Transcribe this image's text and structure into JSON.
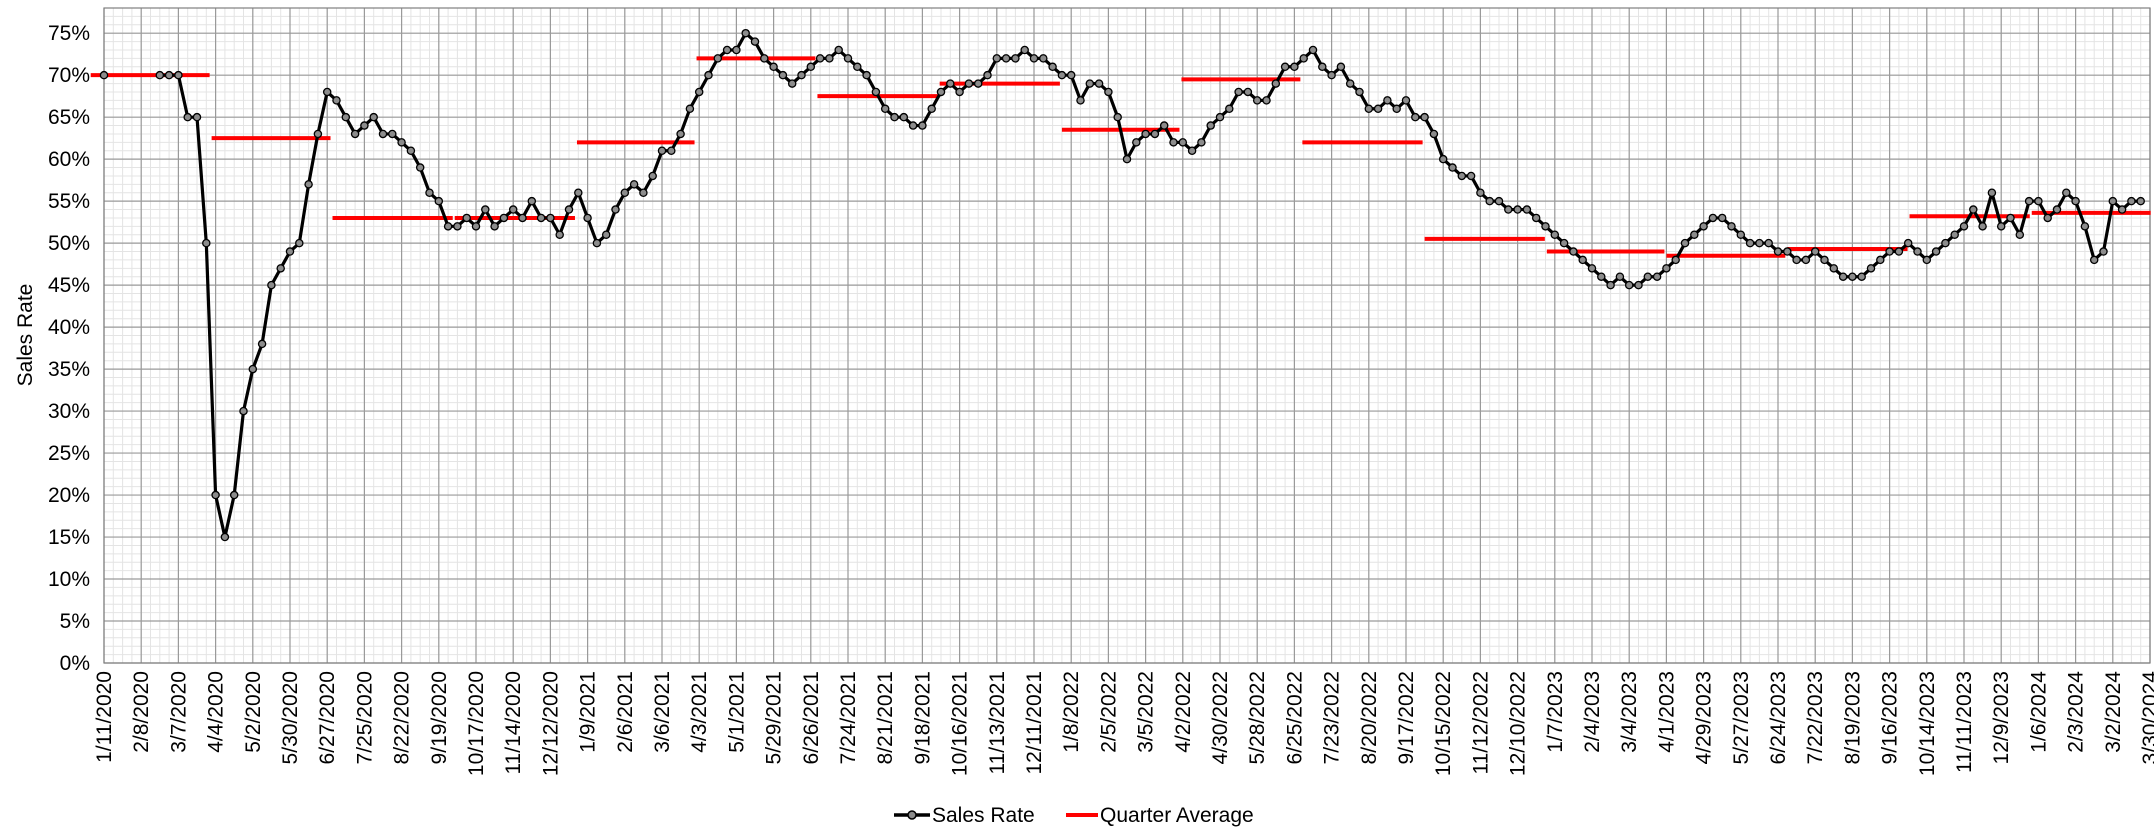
{
  "chart_data": {
    "type": "line",
    "ylabel": "Sales Rate",
    "y_unit": "%",
    "ylim": [
      0,
      78
    ],
    "y_ticks": [
      0,
      5,
      10,
      15,
      20,
      25,
      30,
      35,
      40,
      45,
      50,
      55,
      60,
      65,
      70,
      75
    ],
    "y_tick_labels": [
      "0%",
      "5%",
      "10%",
      "15%",
      "20%",
      "25%",
      "30%",
      "35%",
      "40%",
      "45%",
      "50%",
      "55%",
      "60%",
      "65%",
      "70%",
      "75%"
    ],
    "x_ticks": [
      "1/11/2020",
      "2/8/2020",
      "3/7/2020",
      "4/4/2020",
      "5/2/2020",
      "5/30/2020",
      "6/27/2020",
      "7/25/2020",
      "8/22/2020",
      "9/19/2020",
      "10/17/2020",
      "11/14/2020",
      "12/12/2020",
      "1/9/2021",
      "2/6/2021",
      "3/6/2021",
      "4/3/2021",
      "5/1/2021",
      "5/29/2021",
      "6/26/2021",
      "7/24/2021",
      "8/21/2021",
      "9/18/2021",
      "10/16/2021",
      "11/13/2021",
      "12/11/2021",
      "1/8/2022",
      "2/5/2022",
      "3/5/2022",
      "4/2/2022",
      "4/30/2022",
      "5/28/2022",
      "6/25/2022",
      "7/23/2022",
      "8/20/2022",
      "9/17/2022",
      "10/15/2022",
      "11/12/2022",
      "12/10/2022",
      "1/7/2023",
      "2/4/2023",
      "3/4/2023",
      "4/1/2023",
      "4/29/2023",
      "5/27/2023",
      "6/24/2023",
      "7/22/2023",
      "8/19/2023",
      "9/16/2023",
      "10/14/2023",
      "11/11/2023",
      "12/9/2023",
      "1/6/2024",
      "2/3/2024",
      "3/2/2024",
      "3/30/2024"
    ],
    "grid": true,
    "legend_position": "bottom",
    "series": [
      {
        "name": "Sales Rate",
        "type": "line",
        "marker": "circle",
        "color": "#000000",
        "segments": [
          {
            "x_start": "1/11/2020",
            "step_days": 7,
            "values": [
              70
            ]
          },
          {
            "x_start": "2/22/2020",
            "step_days": 7,
            "values": [
              70,
              70,
              70,
              65,
              65,
              50,
              20,
              15,
              20,
              30,
              35,
              38,
              45,
              47,
              49,
              50,
              57,
              63,
              68,
              67,
              65,
              63,
              64,
              65,
              63,
              63,
              62,
              61,
              59,
              56,
              55,
              52,
              52,
              53,
              52,
              54,
              52,
              53,
              54,
              53,
              55,
              53,
              53,
              51,
              54,
              56,
              53,
              50,
              51,
              54,
              56,
              57,
              56,
              58,
              61,
              61,
              63,
              66,
              68,
              70,
              72,
              73,
              73,
              75,
              74,
              72,
              71,
              70,
              69,
              70,
              71,
              72,
              72,
              73,
              72,
              71,
              70,
              68,
              66,
              65,
              65,
              64,
              64,
              66,
              68,
              69,
              68,
              69,
              69,
              70,
              72,
              72,
              72,
              73,
              72,
              72,
              71,
              70,
              70,
              67,
              69,
              69,
              68,
              65,
              60,
              62,
              63,
              63,
              64,
              62,
              62,
              61,
              62,
              64,
              65,
              66,
              68,
              68,
              67,
              67,
              69,
              71,
              71,
              72,
              73,
              71,
              70,
              71,
              69,
              68,
              66,
              66,
              67,
              66,
              67,
              65,
              65,
              63,
              60,
              59,
              58,
              58,
              56,
              55,
              55,
              54,
              54,
              54,
              53,
              52,
              51,
              50,
              49,
              48,
              47,
              46,
              45,
              46,
              45,
              45,
              46,
              46,
              47,
              48,
              50,
              51,
              52,
              53,
              53,
              52,
              51,
              50,
              50,
              50,
              49,
              49,
              48,
              48,
              49,
              48,
              47,
              46,
              46,
              46,
              47,
              48,
              49,
              49,
              50,
              49,
              48,
              49,
              50,
              51,
              52,
              54,
              52,
              56,
              52,
              53,
              51,
              55,
              55,
              53,
              54,
              56,
              55,
              52,
              48,
              49,
              55,
              54,
              55,
              55
            ]
          }
        ]
      },
      {
        "name": "Quarter Average",
        "type": "step",
        "color": "#ff0000",
        "quarters": [
          {
            "start": "1/1/2020",
            "end": "3/31/2020",
            "value": 70.0
          },
          {
            "start": "4/1/2020",
            "end": "6/30/2020",
            "value": 62.5
          },
          {
            "start": "7/1/2020",
            "end": "9/30/2020",
            "value": 53.0
          },
          {
            "start": "10/1/2020",
            "end": "12/31/2020",
            "value": 53.0
          },
          {
            "start": "1/1/2021",
            "end": "3/31/2021",
            "value": 62.0
          },
          {
            "start": "4/1/2021",
            "end": "6/30/2021",
            "value": 72.0
          },
          {
            "start": "7/1/2021",
            "end": "9/30/2021",
            "value": 67.5
          },
          {
            "start": "10/1/2021",
            "end": "12/31/2021",
            "value": 69.0
          },
          {
            "start": "1/1/2022",
            "end": "3/31/2022",
            "value": 63.5
          },
          {
            "start": "4/1/2022",
            "end": "6/30/2022",
            "value": 69.5
          },
          {
            "start": "7/1/2022",
            "end": "9/30/2022",
            "value": 62.0
          },
          {
            "start": "10/1/2022",
            "end": "12/31/2022",
            "value": 50.5
          },
          {
            "start": "1/1/2023",
            "end": "3/31/2023",
            "value": 49.0
          },
          {
            "start": "4/1/2023",
            "end": "6/30/2023",
            "value": 48.5
          },
          {
            "start": "7/1/2023",
            "end": "9/30/2023",
            "value": 49.3
          },
          {
            "start": "10/1/2023",
            "end": "12/31/2023",
            "value": 53.2
          },
          {
            "start": "1/1/2024",
            "end": "3/31/2024",
            "value": 53.6
          }
        ]
      }
    ]
  }
}
